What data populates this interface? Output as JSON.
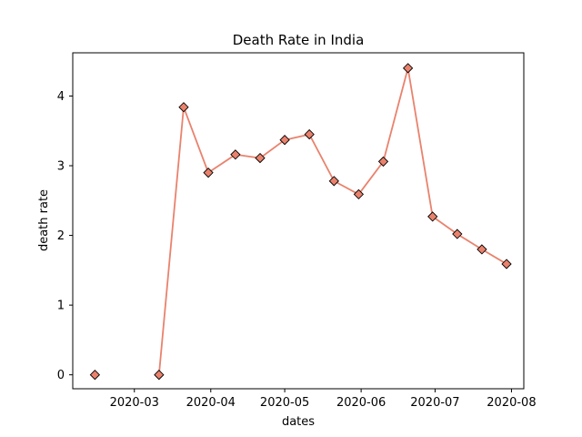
{
  "chart_data": {
    "type": "line",
    "title": "Death Rate in India",
    "xlabel": "dates",
    "ylabel": "death rate",
    "x_axis_type": "date",
    "xlim": [
      "2020-02-05",
      "2020-08-06"
    ],
    "ylim": [
      -0.2,
      4.62
    ],
    "x_ticks": [
      "2020-03-01",
      "2020-04-01",
      "2020-05-01",
      "2020-06-01",
      "2020-07-01",
      "2020-08-01"
    ],
    "x_tick_labels": [
      "2020-03",
      "2020-04",
      "2020-05",
      "2020-06",
      "2020-07",
      "2020-08"
    ],
    "y_ticks": [
      0,
      1,
      2,
      3,
      4
    ],
    "y_tick_labels": [
      "0",
      "1",
      "2",
      "3",
      "4"
    ],
    "grid": false,
    "series": [
      {
        "line_color": "#e9826d",
        "marker": "diamond",
        "marker_face_color": "#e9826d",
        "marker_edge_color": "#000000",
        "points": [
          {
            "x": "2020-02-14",
            "y": 0.0,
            "connected": false
          },
          {
            "x": "2020-03-11",
            "y": 0.0
          },
          {
            "x": "2020-03-21",
            "y": 3.84
          },
          {
            "x": "2020-03-31",
            "y": 2.9
          },
          {
            "x": "2020-04-11",
            "y": 3.16
          },
          {
            "x": "2020-04-21",
            "y": 3.11
          },
          {
            "x": "2020-05-01",
            "y": 3.37
          },
          {
            "x": "2020-05-11",
            "y": 3.45
          },
          {
            "x": "2020-05-21",
            "y": 2.78
          },
          {
            "x": "2020-05-31",
            "y": 2.59
          },
          {
            "x": "2020-06-10",
            "y": 3.06
          },
          {
            "x": "2020-06-20",
            "y": 4.4
          },
          {
            "x": "2020-06-30",
            "y": 2.27
          },
          {
            "x": "2020-07-10",
            "y": 2.02
          },
          {
            "x": "2020-07-20",
            "y": 1.8
          },
          {
            "x": "2020-07-30",
            "y": 1.59
          }
        ]
      }
    ]
  }
}
